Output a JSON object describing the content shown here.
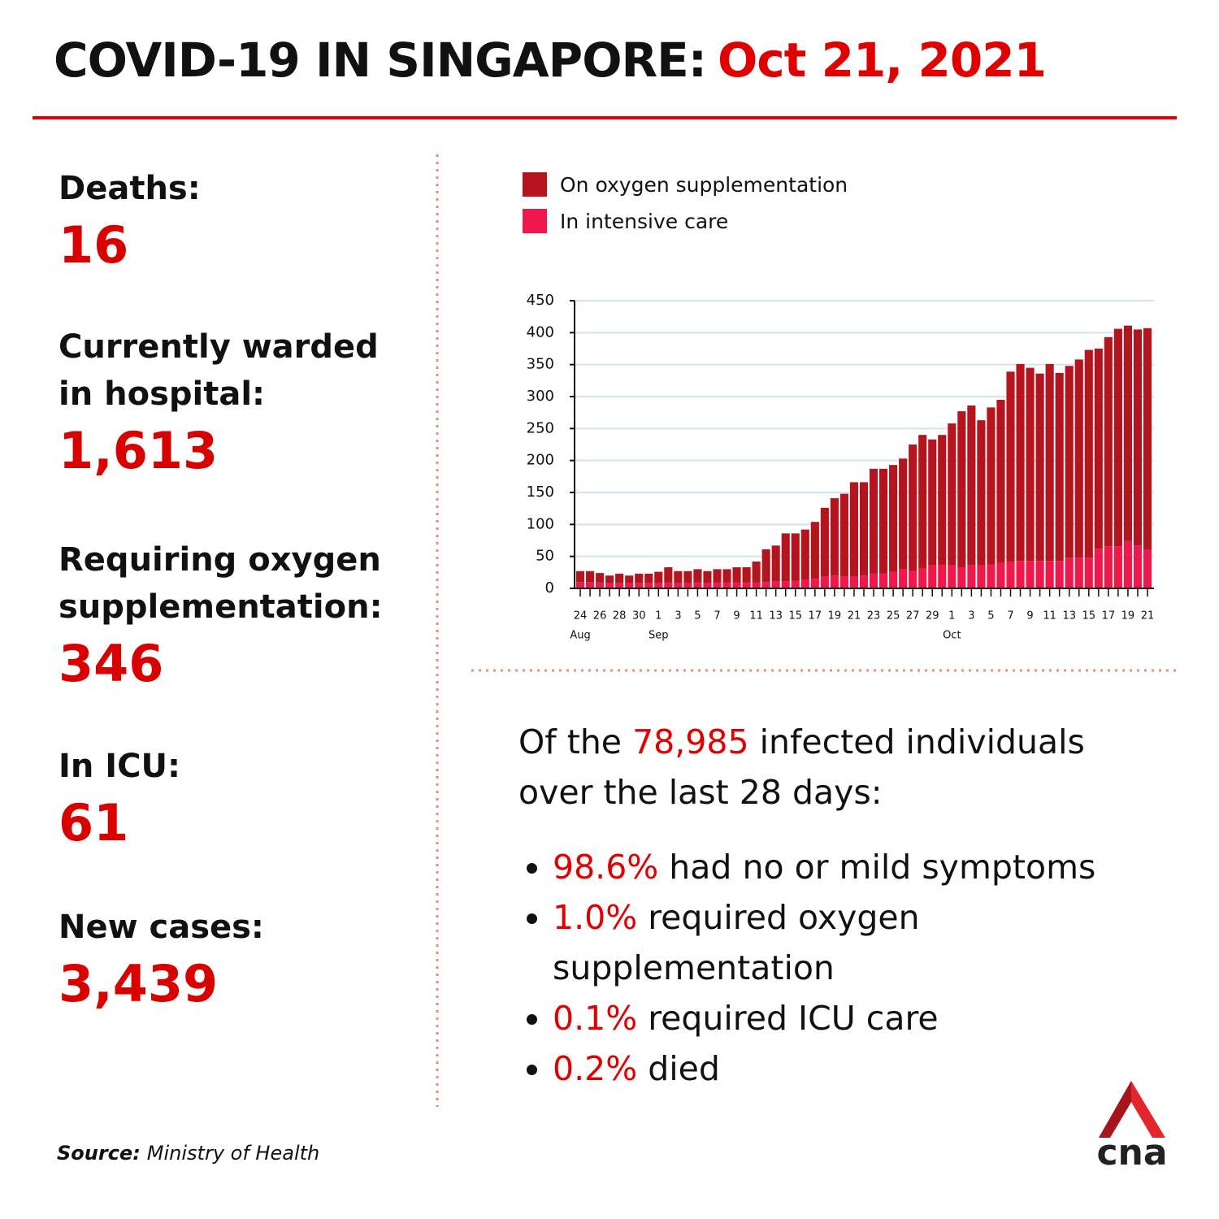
{
  "header": {
    "title": "COVID-19 IN SINGAPORE:",
    "date": "Oct 21, 2021"
  },
  "stats": [
    {
      "label": [
        "Deaths:"
      ],
      "value": "16"
    },
    {
      "label": [
        "Currently warded",
        "in hospital:"
      ],
      "value": "1,613"
    },
    {
      "label": [
        "Requiring oxygen",
        "supplementation:"
      ],
      "value": "346"
    },
    {
      "label": [
        "In ICU:"
      ],
      "value": "61"
    },
    {
      "label": [
        "New cases:"
      ],
      "value": "3,439"
    }
  ],
  "summary": {
    "before": "Of the",
    "highlight": "78,985",
    "after": "infected individuals over the last 28 days:",
    "bullets": [
      {
        "highlight": "98.6%",
        "text": "had no or mild symptoms"
      },
      {
        "highlight": "1.0%",
        "text": "required oxygen supplementation"
      },
      {
        "highlight": "0.1%",
        "text": "required ICU care"
      },
      {
        "highlight": "0.2%",
        "text": "died"
      }
    ]
  },
  "source": {
    "label": "Source:",
    "text": "Ministry of Health"
  },
  "logo": "cna",
  "chart_data": {
    "type": "stacked_bar",
    "categories": [
      "24",
      null,
      "26",
      null,
      "28",
      null,
      "30",
      null,
      "1",
      null,
      "3",
      null,
      "5",
      null,
      "7",
      null,
      "9",
      null,
      "11",
      null,
      "13",
      null,
      "15",
      null,
      "17",
      null,
      "19",
      null,
      "21",
      null,
      "23",
      null,
      "25",
      null,
      "27",
      null,
      "29",
      null,
      "1",
      null,
      "3",
      null,
      "5",
      null,
      "7",
      null,
      "9",
      null,
      "11",
      null,
      "13",
      null,
      "15",
      null,
      "17",
      null,
      "19",
      null,
      "21"
    ],
    "months": [
      "Aug",
      "Sep",
      "Oct"
    ],
    "series": [
      {
        "name": "On oxygen supplementation",
        "color": "#b3141d",
        "values": [
          17,
          17,
          15,
          12,
          15,
          12,
          15,
          15,
          18,
          24,
          19,
          19,
          21,
          19,
          21,
          21,
          24,
          24,
          33,
          51,
          56,
          75,
          74,
          78,
          89,
          107,
          121,
          129,
          148,
          146,
          164,
          164,
          167,
          173,
          197,
          209,
          197,
          204,
          222,
          244,
          250,
          227,
          246,
          255,
          297,
          308,
          302,
          293,
          308,
          294,
          300,
          310,
          325,
          313,
          327,
          340,
          337,
          338,
          346
        ]
      },
      {
        "name": "In intensive care",
        "color": "#f0174b",
        "values": [
          10,
          10,
          9,
          8,
          8,
          8,
          8,
          8,
          8,
          9,
          8,
          8,
          9,
          8,
          9,
          9,
          9,
          9,
          9,
          10,
          11,
          11,
          12,
          14,
          15,
          19,
          20,
          19,
          18,
          20,
          23,
          23,
          26,
          30,
          28,
          31,
          36,
          36,
          36,
          33,
          36,
          36,
          37,
          40,
          42,
          43,
          43,
          43,
          43,
          43,
          48,
          48,
          48,
          62,
          66,
          66,
          74,
          67,
          61
        ]
      }
    ],
    "ylim": [
      0,
      450
    ],
    "yticks": [
      0,
      50,
      100,
      150,
      200,
      250,
      300,
      350,
      400,
      450
    ],
    "grid": true
  }
}
